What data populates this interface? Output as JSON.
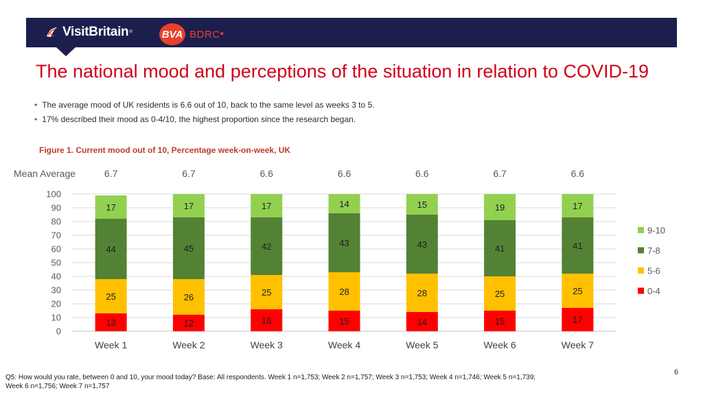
{
  "header": {
    "brand": "VisitBritain",
    "partner_logo": "BVA",
    "partner_text": "BDRC"
  },
  "title": "The national mood and perceptions of the situation in relation to COVID-19",
  "bullets": [
    "The average mood of UK residents is 6.6 out of 10, back to the same level as weeks 3 to 5.",
    "17% described their mood as 0-4/10, the highest proportion since the research began."
  ],
  "figure_title": "Figure 1.  Current mood out of 10, Percentage week-on-week, UK",
  "chart_data": {
    "type": "bar",
    "stacked": true,
    "title": "Current mood out of 10, Percentage week-on-week, UK",
    "categories": [
      "Week 1",
      "Week 2",
      "Week 3",
      "Week 4",
      "Week 5",
      "Week 6",
      "Week 7"
    ],
    "mean_label": "Mean Average",
    "mean_values": [
      "6.7",
      "6.7",
      "6.6",
      "6.6",
      "6.6",
      "6.7",
      "6.6"
    ],
    "series": [
      {
        "name": "0-4",
        "color": "#ff0000",
        "values": [
          13,
          12,
          16,
          15,
          14,
          15,
          17
        ]
      },
      {
        "name": "5-6",
        "color": "#ffc000",
        "values": [
          25,
          26,
          25,
          28,
          28,
          25,
          25
        ]
      },
      {
        "name": "7-8",
        "color": "#548235",
        "values": [
          44,
          45,
          42,
          43,
          43,
          41,
          41
        ]
      },
      {
        "name": "9-10",
        "color": "#92d050",
        "values": [
          17,
          17,
          17,
          14,
          15,
          19,
          17
        ]
      }
    ],
    "legend_order": [
      "9-10",
      "7-8",
      "5-6",
      "0-4"
    ],
    "yticks": [
      0,
      10,
      20,
      30,
      40,
      50,
      60,
      70,
      80,
      90,
      100
    ],
    "ylim": [
      0,
      100
    ],
    "legend_position": "right"
  },
  "footnote": "Q5: How would you rate, between 0 and 10, your mood today? Base: All respondents. Week 1 n=1,753; Week 2 n=1,757; Week 3 n=1,753; Week 4 n=1,746; Week 5 n=1,739; Week 6 n=1,756; Week 7 n=1,757",
  "page_number": "6"
}
